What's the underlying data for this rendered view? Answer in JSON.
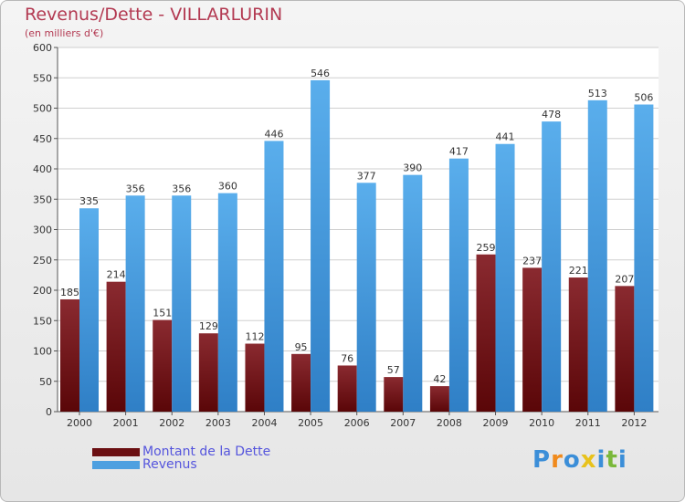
{
  "chart_data": {
    "type": "bar",
    "title": "Revenus/Dette - VILLARLURIN",
    "subtitle": "(en milliers d'€)",
    "categories": [
      "2000",
      "2001",
      "2002",
      "2003",
      "2004",
      "2005",
      "2006",
      "2007",
      "2008",
      "2009",
      "2010",
      "2011",
      "2012"
    ],
    "series": [
      {
        "name": "Montant de la Dette",
        "color": "#7a1e26",
        "values": [
          185,
          214,
          151,
          129,
          112,
          95,
          76,
          57,
          42,
          259,
          237,
          221,
          207
        ]
      },
      {
        "name": "Revenus",
        "color": "#4ea0e0",
        "values": [
          335,
          356,
          356,
          360,
          446,
          546,
          377,
          390,
          417,
          441,
          478,
          513,
          506
        ]
      }
    ],
    "y_ticks": [
      0,
      50,
      100,
      150,
      200,
      250,
      300,
      350,
      400,
      450,
      500,
      550,
      600
    ],
    "ylim": [
      0,
      600
    ],
    "grid": true,
    "xlabel": "",
    "ylabel": ""
  },
  "legend": [
    {
      "label": "Montant de la Dette",
      "color": "#6b0f12"
    },
    {
      "label": "Revenus",
      "color": "#4ea0e0"
    }
  ],
  "logo": {
    "letters": [
      "P",
      "r",
      "o",
      "x",
      "i",
      "t",
      "i"
    ],
    "colors": [
      "#3b8ed8",
      "#f08a1c",
      "#3b8ed8",
      "#e8c21c",
      "#3b8ed8",
      "#7ab83a",
      "#3b8ed8"
    ]
  }
}
